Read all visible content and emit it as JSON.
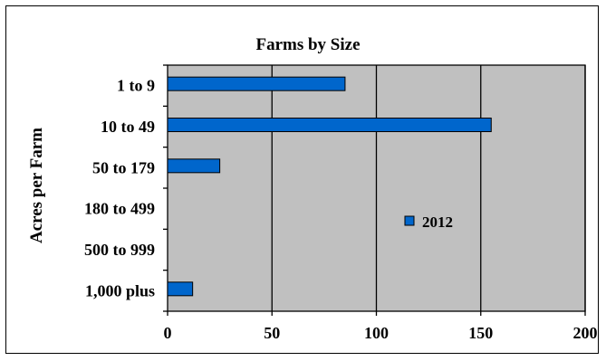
{
  "chart_data": {
    "type": "bar",
    "orientation": "horizontal",
    "title": "Farms by Size",
    "xlabel": "",
    "ylabel": "Acres per Farm",
    "categories": [
      "1 to 9",
      "10 to 49",
      "50 to 179",
      "180 to 499",
      "500 to 999",
      "1,000 plus"
    ],
    "series": [
      {
        "name": "2012",
        "values": [
          85,
          155,
          25,
          0,
          0,
          12
        ]
      }
    ],
    "xlim": [
      0,
      200
    ],
    "xticks": [
      0,
      50,
      100,
      150,
      200
    ],
    "grid": "vertical",
    "legend": "right",
    "colors": {
      "bar": "#0066CC",
      "plot_background": "#C0C0C0",
      "gridline": "#000000"
    }
  }
}
